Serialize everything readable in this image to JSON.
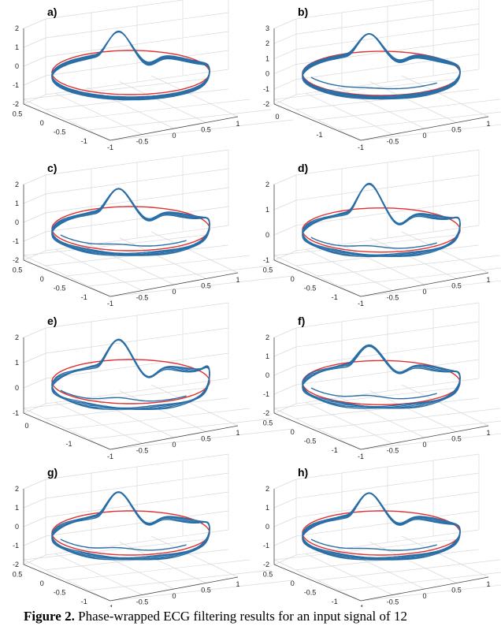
{
  "caption": {
    "label": "Figure 2.",
    "text": "Phase-wrapped ECG filtering results for an input signal of 12"
  },
  "colors": {
    "ring": "#e03030",
    "trace": "#2a6ea6"
  },
  "chart_data": [
    {
      "type": "line3d",
      "label": "a)",
      "zlim": [
        -2,
        2
      ],
      "z_ticks": [
        "2",
        "1",
        "0",
        "-1",
        "-2"
      ],
      "x_ticks": [
        "1",
        "0.5",
        "0",
        "-0.5",
        "-1"
      ],
      "y_ticks": [
        "0.5",
        "0",
        "-0.5",
        "-1"
      ],
      "peak": 2.3,
      "t_wave": 0.6,
      "ring_z": 0.7,
      "noise": 0
    },
    {
      "type": "line3d",
      "label": "b)",
      "zlim": [
        -2,
        3
      ],
      "z_ticks": [
        "3",
        "2",
        "1",
        "0",
        "-1",
        "-2"
      ],
      "x_ticks": [
        "1",
        "0.5",
        "0",
        "-0.5",
        "-1"
      ],
      "y_ticks": [
        "0",
        "-1"
      ],
      "peak": 2.5,
      "t_wave": 0.5,
      "ring_z": 0.6,
      "noise": 0.2
    },
    {
      "type": "line3d",
      "label": "c)",
      "zlim": [
        -2,
        2
      ],
      "z_ticks": [
        "2",
        "1",
        "0",
        "-1",
        "-2"
      ],
      "x_ticks": [
        "1",
        "0.5",
        "0",
        "-0.5",
        "-1"
      ],
      "y_ticks": [
        "0.5",
        "0",
        "-0.5",
        "-1"
      ],
      "peak": 2.2,
      "t_wave": 0.9,
      "ring_z": 0.7,
      "noise": 0.3
    },
    {
      "type": "line3d",
      "label": "d)",
      "zlim": [
        -1,
        2
      ],
      "z_ticks": [
        "2",
        "1",
        "0",
        "-1"
      ],
      "x_ticks": [
        "1",
        "0.5",
        "0",
        "-0.5",
        "-1"
      ],
      "y_ticks": [
        "0.5",
        "0",
        "-0.5",
        "-1"
      ],
      "peak": 2.1,
      "t_wave": 0.8,
      "ring_z": 0.6,
      "noise": 0.3
    },
    {
      "type": "line3d",
      "label": "e)",
      "zlim": [
        -1,
        2
      ],
      "z_ticks": [
        "2",
        "1",
        "0",
        "-1"
      ],
      "x_ticks": [
        "1",
        "0.5",
        "0",
        "-0.5",
        "-1"
      ],
      "y_ticks": [
        "0",
        "-1"
      ],
      "peak": 1.9,
      "t_wave": 1.1,
      "ring_z": 0.7,
      "noise": 0.4
    },
    {
      "type": "line3d",
      "label": "f)",
      "zlim": [
        -2,
        2
      ],
      "z_ticks": [
        "2",
        "1",
        "0",
        "-1",
        "-2"
      ],
      "x_ticks": [
        "1",
        "0.5",
        "0",
        "-0.5",
        "-1"
      ],
      "y_ticks": [
        "0.5",
        "0",
        "-0.5",
        "-1"
      ],
      "peak": 1.8,
      "t_wave": 0.8,
      "ring_z": 0.6,
      "noise": 0.5
    },
    {
      "type": "line3d",
      "label": "g)",
      "zlim": [
        -2,
        2
      ],
      "z_ticks": [
        "2",
        "1",
        "0",
        "-1",
        "-2"
      ],
      "x_ticks": [
        "1",
        "0.5",
        "0",
        "-0.5",
        "-1"
      ],
      "y_ticks": [
        "0.5",
        "0",
        "-0.5",
        "-1"
      ],
      "peak": 2.3,
      "t_wave": 0.9,
      "ring_z": 0.7,
      "noise": 0.4
    },
    {
      "type": "line3d",
      "label": "h)",
      "zlim": [
        -2,
        2
      ],
      "z_ticks": [
        "2",
        "1",
        "0",
        "-1",
        "-2"
      ],
      "x_ticks": [
        "1",
        "0.5",
        "0",
        "-0.5",
        "-1"
      ],
      "y_ticks": [
        "0.5",
        "0",
        "-0.5",
        "-1"
      ],
      "peak": 2.2,
      "t_wave": 0.6,
      "ring_z": 0.7,
      "noise": 0.3
    }
  ]
}
